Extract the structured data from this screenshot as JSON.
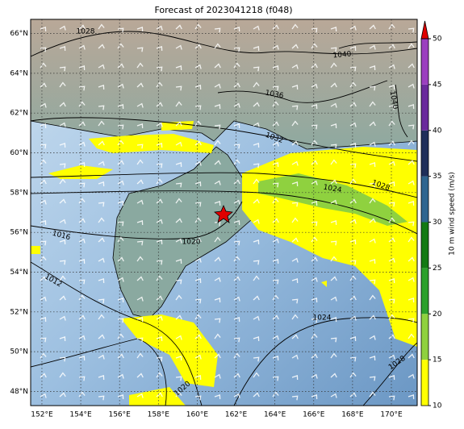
{
  "title": "Forecast of 2023041218 (f048)",
  "map": {
    "xlim": [
      151.42,
      171.33
    ],
    "ylim": [
      47.29,
      66.71
    ],
    "lon_ticks": [
      {
        "value": 152,
        "label": "152°E"
      },
      {
        "value": 154,
        "label": "154°E"
      },
      {
        "value": 156,
        "label": "156°E"
      },
      {
        "value": 158,
        "label": "158°E"
      },
      {
        "value": 160,
        "label": "160°E"
      },
      {
        "value": 162,
        "label": "162°E"
      },
      {
        "value": 164,
        "label": "164°E"
      },
      {
        "value": 166,
        "label": "166°E"
      },
      {
        "value": 168,
        "label": "168°E"
      },
      {
        "value": 170,
        "label": "170°E"
      }
    ],
    "lat_ticks": [
      {
        "value": 48,
        "label": "48°N"
      },
      {
        "value": 50,
        "label": "50°N"
      },
      {
        "value": 52,
        "label": "52°N"
      },
      {
        "value": 54,
        "label": "54°N"
      },
      {
        "value": 56,
        "label": "56°N"
      },
      {
        "value": 58,
        "label": "58°N"
      },
      {
        "value": 60,
        "label": "60°N"
      },
      {
        "value": 62,
        "label": "62°N"
      },
      {
        "value": 64,
        "label": "64°N"
      },
      {
        "value": 66,
        "label": "66°N"
      }
    ],
    "contour_labels": [
      1028,
      1040,
      1036,
      1040,
      1032,
      1024,
      1028,
      1016,
      1020,
      1012,
      1024,
      1028,
      1020
    ]
  },
  "colorbar": {
    "label": "10 m wind speed (m/s)",
    "lim": [
      10,
      50
    ],
    "ticks": [
      10,
      15,
      20,
      25,
      30,
      35,
      40,
      45,
      50
    ],
    "colors": [
      "#ffff00",
      "#8fd13f",
      "#2ca02c",
      "#137a13",
      "#2f6690",
      "#1f2f5a",
      "#6a2a9c",
      "#9b3fbf"
    ],
    "extend_color": "#e00000"
  }
}
